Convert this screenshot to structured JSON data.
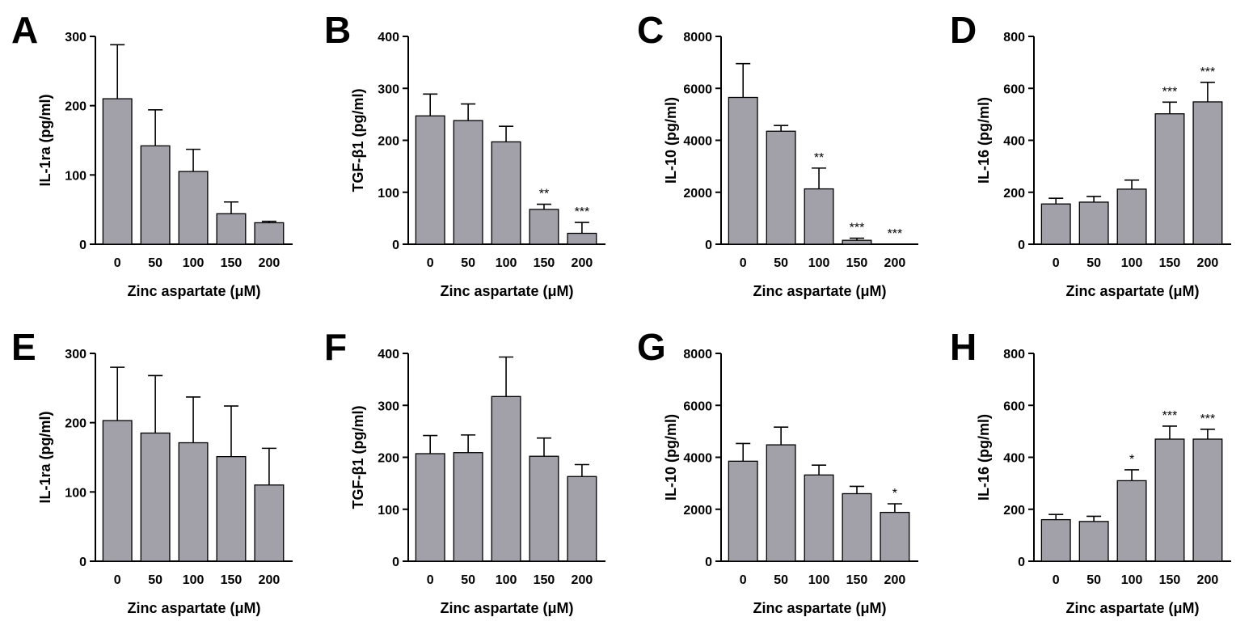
{
  "chart_data": [
    {
      "panel": "A",
      "type": "bar",
      "categories": [
        "0",
        "50",
        "100",
        "150",
        "200"
      ],
      "values": [
        210,
        142,
        105,
        44,
        31
      ],
      "errors": [
        78,
        52,
        32,
        17,
        2
      ],
      "significance": [
        "",
        "",
        "",
        "",
        ""
      ],
      "ylabel": "IL-1ra (pg/ml)",
      "xlabel": "Zinc aspartate (μM)",
      "ylim": [
        0,
        300
      ],
      "yticks": [
        "0",
        "100",
        "200",
        "300"
      ]
    },
    {
      "panel": "B",
      "type": "bar",
      "categories": [
        "0",
        "50",
        "100",
        "150",
        "200"
      ],
      "values": [
        247,
        238,
        197,
        67,
        21
      ],
      "errors": [
        42,
        32,
        30,
        10,
        21
      ],
      "significance": [
        "",
        "",
        "",
        "**",
        "***"
      ],
      "ylabel": "TGF-β1 (pg/ml)",
      "xlabel": "Zinc aspartate (μM)",
      "ylim": [
        0,
        400
      ],
      "yticks": [
        "0",
        "100",
        "200",
        "300",
        "400"
      ]
    },
    {
      "panel": "C",
      "type": "bar",
      "categories": [
        "0",
        "50",
        "100",
        "150",
        "200"
      ],
      "values": [
        5650,
        4350,
        2130,
        150,
        0
      ],
      "errors": [
        1300,
        220,
        800,
        80,
        0
      ],
      "significance": [
        "",
        "",
        "**",
        "***",
        "***"
      ],
      "ylabel": "IL-10 (pg/ml)",
      "xlabel": "Zinc aspartate (μM)",
      "ylim": [
        0,
        8000
      ],
      "yticks": [
        "0",
        "2000",
        "4000",
        "6000",
        "8000"
      ]
    },
    {
      "panel": "D",
      "type": "bar",
      "categories": [
        "0",
        "50",
        "100",
        "150",
        "200"
      ],
      "values": [
        155,
        162,
        212,
        502,
        548
      ],
      "errors": [
        22,
        22,
        35,
        45,
        75
      ],
      "significance": [
        "",
        "",
        "",
        "***",
        "***"
      ],
      "ylabel": "IL-16 (pg/ml)",
      "xlabel": "Zinc aspartate (μM)",
      "ylim": [
        0,
        800
      ],
      "yticks": [
        "0",
        "200",
        "400",
        "600",
        "800"
      ]
    },
    {
      "panel": "E",
      "type": "bar",
      "categories": [
        "0",
        "50",
        "100",
        "150",
        "200"
      ],
      "values": [
        203,
        185,
        171,
        151,
        110
      ],
      "errors": [
        77,
        83,
        66,
        73,
        53
      ],
      "significance": [
        "",
        "",
        "",
        "",
        ""
      ],
      "ylabel": "IL-1ra (pg/ml)",
      "xlabel": "Zinc aspartate (μM)",
      "ylim": [
        0,
        300
      ],
      "yticks": [
        "0",
        "100",
        "200",
        "300"
      ]
    },
    {
      "panel": "F",
      "type": "bar",
      "categories": [
        "0",
        "50",
        "100",
        "150",
        "200"
      ],
      "values": [
        207,
        209,
        317,
        202,
        163
      ],
      "errors": [
        35,
        34,
        76,
        35,
        23
      ],
      "significance": [
        "",
        "",
        "",
        "",
        ""
      ],
      "ylabel": "TGF-β1 (pg/ml)",
      "xlabel": "Zinc aspartate (μM)",
      "ylim": [
        0,
        400
      ],
      "yticks": [
        "0",
        "100",
        "200",
        "300",
        "400"
      ]
    },
    {
      "panel": "G",
      "type": "bar",
      "categories": [
        "0",
        "50",
        "100",
        "150",
        "200"
      ],
      "values": [
        3850,
        4480,
        3320,
        2600,
        1880
      ],
      "errors": [
        680,
        680,
        380,
        280,
        330
      ],
      "significance": [
        "",
        "",
        "",
        "",
        "*"
      ],
      "ylabel": "IL-10 (pg/ml)",
      "xlabel": "Zinc aspartate (μM)",
      "ylim": [
        0,
        8000
      ],
      "yticks": [
        "0",
        "2000",
        "4000",
        "6000",
        "8000"
      ]
    },
    {
      "panel": "H",
      "type": "bar",
      "categories": [
        "0",
        "50",
        "100",
        "150",
        "200"
      ],
      "values": [
        160,
        153,
        310,
        470,
        470
      ],
      "errors": [
        20,
        20,
        42,
        50,
        38
      ],
      "significance": [
        "",
        "",
        "*",
        "***",
        "***"
      ],
      "ylabel": "IL-16 (pg/ml)",
      "xlabel": "Zinc aspartate (μM)",
      "ylim": [
        0,
        800
      ],
      "yticks": [
        "0",
        "200",
        "400",
        "600",
        "800"
      ]
    }
  ],
  "colors": {
    "bar_fill": "#a2a1a9",
    "stroke": "#000000",
    "background": "#ffffff"
  }
}
